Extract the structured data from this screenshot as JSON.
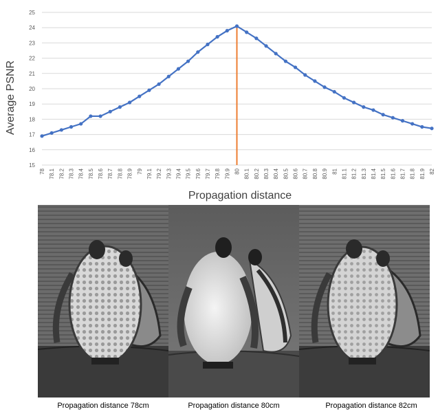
{
  "chart_data": {
    "type": "line",
    "xlabel": "Propagation distance",
    "ylabel": "Average PSNR",
    "ylim": [
      15,
      25
    ],
    "yticks": [
      15,
      16,
      17,
      18,
      19,
      20,
      21,
      22,
      23,
      24,
      25
    ],
    "grid": "horizontal",
    "x": [
      "78",
      "78.1",
      "78.2",
      "78.3",
      "78.4",
      "78.5",
      "78.6",
      "78.7",
      "78.8",
      "78.9",
      "79",
      "79.1",
      "79.2",
      "79.3",
      "79.4",
      "79.5",
      "79.6",
      "79.7",
      "79.8",
      "79.9",
      "80",
      "80.1",
      "80.2",
      "80.3",
      "80.4",
      "80.5",
      "80.6",
      "80.7",
      "80.8",
      "80.9",
      "81",
      "81.1",
      "81.2",
      "81.3",
      "81.4",
      "81.5",
      "81.6",
      "81.7",
      "81.8",
      "81.9",
      "82"
    ],
    "series": [
      {
        "color": "#4472c4",
        "values": [
          16.9,
          17.1,
          17.3,
          17.5,
          17.7,
          18.2,
          18.2,
          18.5,
          18.8,
          19.1,
          19.5,
          19.9,
          20.3,
          20.8,
          21.3,
          21.8,
          22.4,
          22.9,
          23.4,
          23.8,
          24.1,
          23.7,
          23.3,
          22.8,
          22.3,
          21.8,
          21.4,
          20.9,
          20.5,
          20.1,
          19.8,
          19.4,
          19.1,
          18.8,
          18.6,
          18.3,
          18.1,
          17.9,
          17.7,
          17.5,
          17.4
        ]
      }
    ],
    "marker_line": {
      "x": "80",
      "color": "#ed7d31"
    }
  },
  "panels": [
    {
      "caption": "Propagation distance 78cm"
    },
    {
      "caption": "Propagation distance 80cm"
    },
    {
      "caption": "Propagation distance 82cm"
    }
  ]
}
